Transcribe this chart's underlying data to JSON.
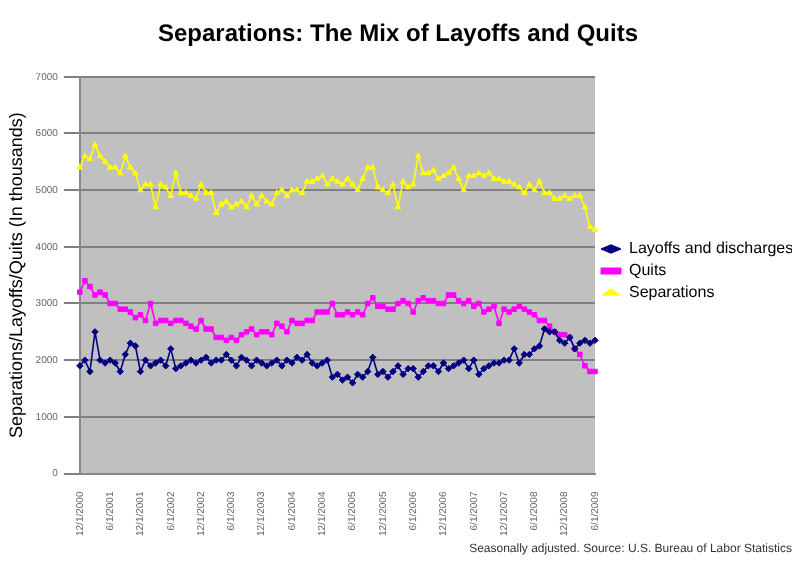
{
  "chart_data": {
    "type": "line",
    "title": "Separations: The Mix of Layoffs and Quits",
    "ylabel": "Separations/Layoffs/Quits (In thousands)",
    "categories": [
      "12/1/2000",
      null,
      null,
      null,
      null,
      null,
      "6/1/2001",
      null,
      null,
      null,
      null,
      null,
      "12/1/2001",
      null,
      null,
      null,
      null,
      null,
      "6/1/2002",
      null,
      null,
      null,
      null,
      null,
      "12/1/2002",
      null,
      null,
      null,
      null,
      null,
      "6/1/2003",
      null,
      null,
      null,
      null,
      null,
      "12/1/2003",
      null,
      null,
      null,
      null,
      null,
      "6/1/2004",
      null,
      null,
      null,
      null,
      null,
      "12/1/2004",
      null,
      null,
      null,
      null,
      null,
      "6/1/2005",
      null,
      null,
      null,
      null,
      null,
      "12/1/2005",
      null,
      null,
      null,
      null,
      null,
      "6/1/2006",
      null,
      null,
      null,
      null,
      null,
      "12/1/2006",
      null,
      null,
      null,
      null,
      null,
      "6/1/2007",
      null,
      null,
      null,
      null,
      null,
      "12/1/2007",
      null,
      null,
      null,
      null,
      null,
      "6/1/2008",
      null,
      null,
      null,
      null,
      null,
      "12/1/2008",
      null,
      null,
      null,
      null,
      null,
      "6/1/2009"
    ],
    "series": [
      {
        "name": "Layoffs and discharges",
        "color": "#000080",
        "marker": "diamond",
        "values": [
          1900,
          2000,
          1800,
          2500,
          2000,
          1950,
          2000,
          1950,
          1800,
          2100,
          2300,
          2250,
          1800,
          2000,
          1900,
          1950,
          2000,
          1900,
          2200,
          1850,
          1900,
          1950,
          2000,
          1950,
          2000,
          2050,
          1950,
          2000,
          2000,
          2100,
          2000,
          1900,
          2050,
          2000,
          1900,
          2000,
          1950,
          1900,
          1950,
          2000,
          1900,
          2000,
          1950,
          2050,
          2000,
          2100,
          1950,
          1900,
          1950,
          2000,
          1700,
          1750,
          1650,
          1700,
          1600,
          1750,
          1700,
          1800,
          2050,
          1750,
          1800,
          1700,
          1800,
          1900,
          1750,
          1850,
          1850,
          1700,
          1800,
          1900,
          1900,
          1800,
          1950,
          1850,
          1900,
          1950,
          2000,
          1850,
          2000,
          1750,
          1850,
          1900,
          1950,
          1950,
          2000,
          2000,
          2200,
          1950,
          2100,
          2100,
          2200,
          2250,
          2550,
          2500,
          2500,
          2350,
          2300,
          2400,
          2200,
          2300,
          2350,
          2300,
          2350
        ]
      },
      {
        "name": "Quits",
        "color": "#ff00ff",
        "marker": "square",
        "values": [
          3200,
          3400,
          3300,
          3150,
          3200,
          3150,
          3000,
          3000,
          2900,
          2900,
          2850,
          2750,
          2800,
          2700,
          3000,
          2650,
          2700,
          2700,
          2650,
          2700,
          2700,
          2650,
          2600,
          2550,
          2700,
          2550,
          2550,
          2400,
          2400,
          2350,
          2400,
          2350,
          2450,
          2500,
          2550,
          2450,
          2500,
          2500,
          2450,
          2650,
          2600,
          2500,
          2700,
          2650,
          2650,
          2700,
          2700,
          2850,
          2850,
          2850,
          3000,
          2800,
          2800,
          2850,
          2800,
          2850,
          2800,
          3000,
          3100,
          2950,
          2950,
          2900,
          2900,
          3000,
          3050,
          3000,
          2850,
          3050,
          3100,
          3050,
          3050,
          3000,
          3000,
          3150,
          3150,
          3050,
          3000,
          3050,
          2950,
          3000,
          2850,
          2900,
          2950,
          2650,
          2900,
          2850,
          2900,
          2950,
          2900,
          2850,
          2800,
          2700,
          2700,
          2600,
          2500,
          2450,
          2450,
          2400,
          2200,
          2100,
          1900,
          1800,
          1800
        ]
      },
      {
        "name": "Separations",
        "color": "#ffff00",
        "marker": "triangle",
        "values": [
          5400,
          5600,
          5550,
          5800,
          5600,
          5500,
          5400,
          5400,
          5300,
          5600,
          5400,
          5300,
          5000,
          5100,
          5100,
          4700,
          5100,
          5050,
          4900,
          5300,
          4950,
          4950,
          4900,
          4850,
          5100,
          4950,
          4950,
          4600,
          4750,
          4800,
          4700,
          4750,
          4800,
          4700,
          4900,
          4750,
          4900,
          4800,
          4750,
          4950,
          5000,
          4900,
          5000,
          5000,
          4950,
          5150,
          5150,
          5200,
          5250,
          5100,
          5200,
          5150,
          5100,
          5200,
          5100,
          5000,
          5200,
          5400,
          5400,
          5050,
          5000,
          4950,
          5100,
          4700,
          5150,
          5050,
          5100,
          5600,
          5300,
          5300,
          5350,
          5200,
          5250,
          5300,
          5400,
          5200,
          5000,
          5250,
          5250,
          5300,
          5250,
          5300,
          5200,
          5200,
          5150,
          5150,
          5100,
          5050,
          4950,
          5100,
          5000,
          5150,
          4950,
          4950,
          4850,
          4850,
          4900,
          4850,
          4900,
          4900,
          4700,
          4350,
          4300
        ]
      }
    ],
    "ylim": [
      0,
      7000
    ],
    "yticks": [
      0,
      1000,
      2000,
      3000,
      4000,
      5000,
      6000,
      7000
    ],
    "grid": "y",
    "legend": "right",
    "line_style": "solid",
    "annotations": [
      "Seasonally adjusted. Source: U.S. Bureau of Labor Statistics"
    ]
  }
}
